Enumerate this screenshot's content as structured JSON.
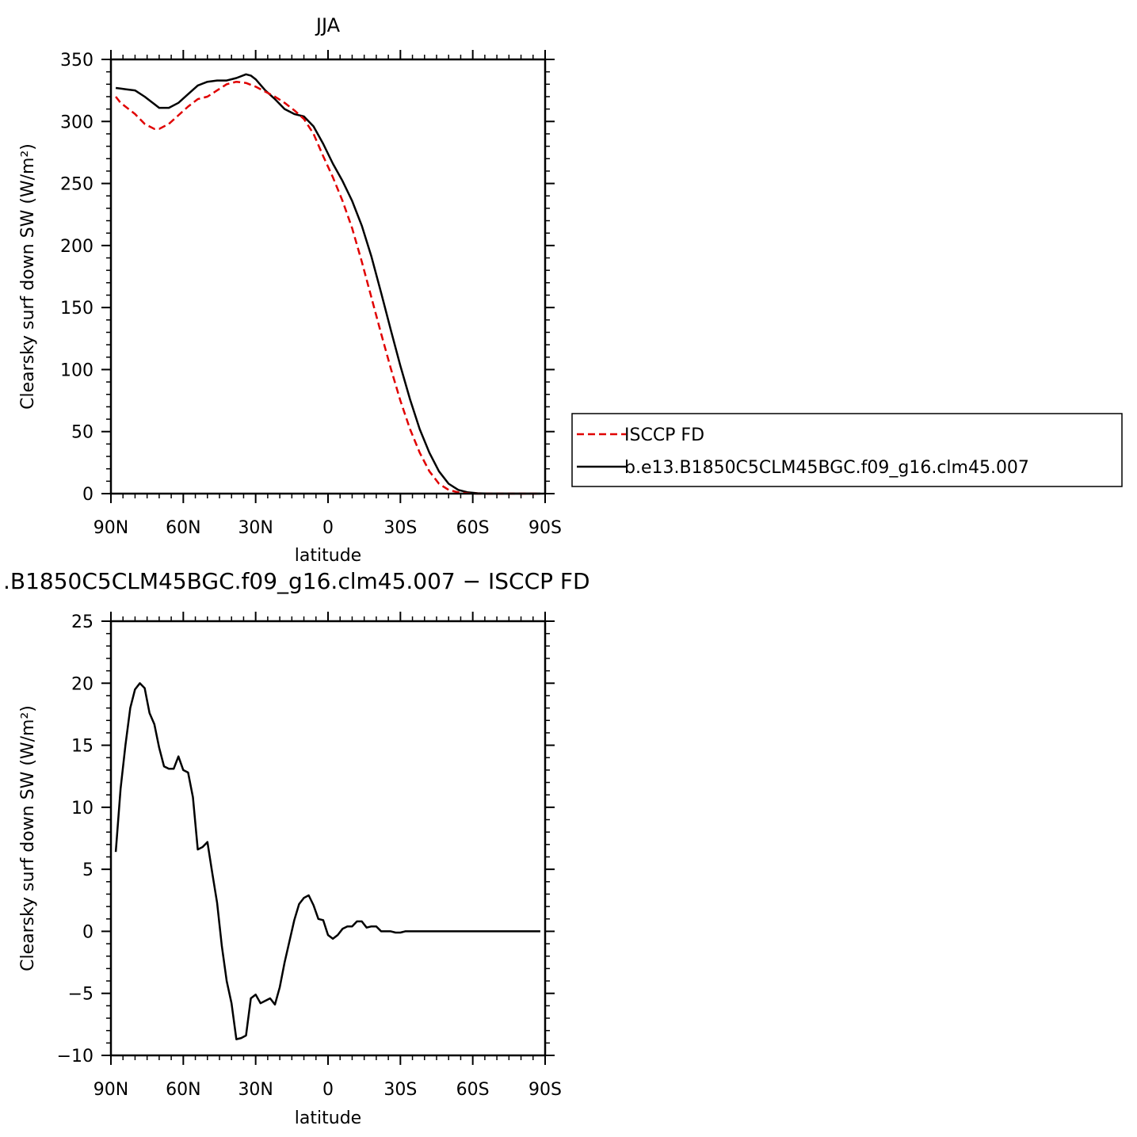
{
  "chart_data": [
    {
      "type": "line",
      "title": "JJA",
      "xlabel": "latitude",
      "ylabel": "Clearsky surf down SW (W/m²)",
      "xlim": [
        90,
        -90
      ],
      "ylim": [
        0,
        350
      ],
      "xticks": [
        90,
        60,
        30,
        0,
        -30,
        -60,
        -90
      ],
      "xticklabels": [
        "90N",
        "60N",
        "30N",
        "0",
        "30S",
        "60S",
        "90S"
      ],
      "yticks": [
        0,
        50,
        100,
        150,
        200,
        250,
        300,
        350
      ],
      "yticklabels": [
        "0",
        "50",
        "100",
        "150",
        "200",
        "250",
        "300",
        "350"
      ],
      "legend": "right",
      "series": [
        {
          "name": "ISCCP FD",
          "color": "#e00000",
          "style": "dashed",
          "x": [
            88,
            86,
            84,
            80,
            76,
            72,
            70,
            66,
            62,
            58,
            54,
            50,
            46,
            42,
            38,
            34,
            30,
            26,
            22,
            18,
            14,
            10,
            6,
            2,
            -2,
            -6,
            -10,
            -14,
            -18,
            -22,
            -26,
            -30,
            -34,
            -38,
            -42,
            -46,
            -50,
            -54,
            -58,
            -62,
            -66,
            -70,
            -74,
            -78,
            -82,
            -86,
            -88
          ],
          "values": [
            320,
            315,
            312,
            306,
            298,
            294,
            294,
            298,
            305,
            312,
            318,
            320,
            325,
            330,
            332,
            331,
            328,
            324,
            320,
            315,
            309,
            302,
            290,
            272,
            255,
            236,
            214,
            187,
            158,
            129,
            101,
            75,
            52,
            33,
            18,
            8,
            3,
            1,
            0.3,
            0,
            0,
            0,
            0,
            0,
            0,
            0,
            0
          ]
        },
        {
          "name": "b.e13.B1850C5CLM45BGC.f09_g16.clm45.007",
          "color": "#000000",
          "style": "solid",
          "x": [
            88,
            86,
            84,
            80,
            76,
            72,
            70,
            66,
            62,
            58,
            54,
            50,
            46,
            42,
            38,
            34,
            32,
            30,
            26,
            22,
            18,
            14,
            10,
            6,
            2,
            -2,
            -6,
            -10,
            -14,
            -18,
            -22,
            -26,
            -30,
            -34,
            -38,
            -42,
            -46,
            -50,
            -54,
            -58,
            -62,
            -66,
            -70,
            -74,
            -78,
            -82,
            -86,
            -88
          ],
          "values": [
            327,
            326.5,
            326,
            325,
            320,
            314,
            311,
            311,
            315,
            322,
            329,
            332,
            333,
            333,
            335,
            338,
            337,
            334,
            325,
            318,
            310,
            306,
            304,
            296,
            282,
            266,
            252,
            236,
            216,
            191,
            162,
            132,
            103,
            76,
            52,
            33,
            18,
            8,
            3,
            1,
            0.3,
            0,
            0,
            0,
            0,
            0,
            0,
            0
          ]
        }
      ]
    },
    {
      "type": "line",
      "title": ".B1850C5CLM45BGC.f09_g16.clm45.007 − ISCCP FD",
      "xlabel": "latitude",
      "ylabel": "Clearsky surf down SW (W/m²)",
      "xlim": [
        90,
        -90
      ],
      "ylim": [
        -10,
        25
      ],
      "xticks": [
        90,
        60,
        30,
        0,
        -30,
        -60,
        -90
      ],
      "xticklabels": [
        "90N",
        "60N",
        "30N",
        "0",
        "30S",
        "60S",
        "90S"
      ],
      "yticks": [
        -10,
        -5,
        0,
        5,
        10,
        15,
        20,
        25
      ],
      "yticklabels": [
        "−10",
        "−5",
        "0",
        "5",
        "10",
        "15",
        "20",
        "25"
      ],
      "series": [
        {
          "color": "#000000",
          "style": "solid",
          "x": [
            88,
            86,
            84,
            82,
            80,
            78,
            76,
            74,
            72,
            70,
            68,
            66,
            64,
            62,
            60,
            58,
            56,
            54,
            52,
            50,
            48,
            46,
            44,
            42,
            40,
            38,
            36,
            34,
            32,
            30,
            28,
            26,
            24,
            22,
            20,
            18,
            16,
            14,
            12,
            10,
            8,
            6,
            4,
            2,
            0,
            -2,
            -4,
            -6,
            -8,
            -10,
            -12,
            -14,
            -16,
            -18,
            -20,
            -22,
            -24,
            -26,
            -28,
            -30,
            -32,
            -34,
            -36,
            -38,
            -40,
            -42,
            -44,
            -46,
            -48,
            -50,
            -52,
            -54,
            -56,
            -58,
            -60,
            -62,
            -64,
            -66,
            -68,
            -70,
            -72,
            -74,
            -76,
            -78,
            -80,
            -82,
            -84,
            -86,
            -88
          ],
          "values": [
            6.4,
            11.5,
            15,
            18,
            19.5,
            20,
            19.6,
            17.6,
            16.7,
            14.8,
            13.3,
            13.1,
            13.1,
            14.1,
            13,
            12.8,
            10.8,
            6.6,
            6.8,
            7.2,
            4.7,
            2.3,
            -1.2,
            -4,
            -5.8,
            -8.7,
            -8.6,
            -8.4,
            -5.4,
            -5.1,
            -5.8,
            -5.6,
            -5.4,
            -5.9,
            -4.5,
            -2.5,
            -0.8,
            0.9,
            2.2,
            2.7,
            2.9,
            2.1,
            1,
            0.9,
            -0.3,
            -0.6,
            -0.3,
            0.2,
            0.4,
            0.4,
            0.8,
            0.8,
            0.3,
            0.4,
            0.4,
            0,
            0,
            0,
            -0.1,
            -0.1,
            0,
            0,
            0,
            0,
            0,
            0,
            0,
            0,
            0,
            0,
            0,
            0,
            0,
            0,
            0,
            0,
            0,
            0,
            0,
            0,
            0,
            0,
            0,
            0,
            0,
            0,
            0,
            0,
            0
          ]
        }
      ]
    }
  ]
}
